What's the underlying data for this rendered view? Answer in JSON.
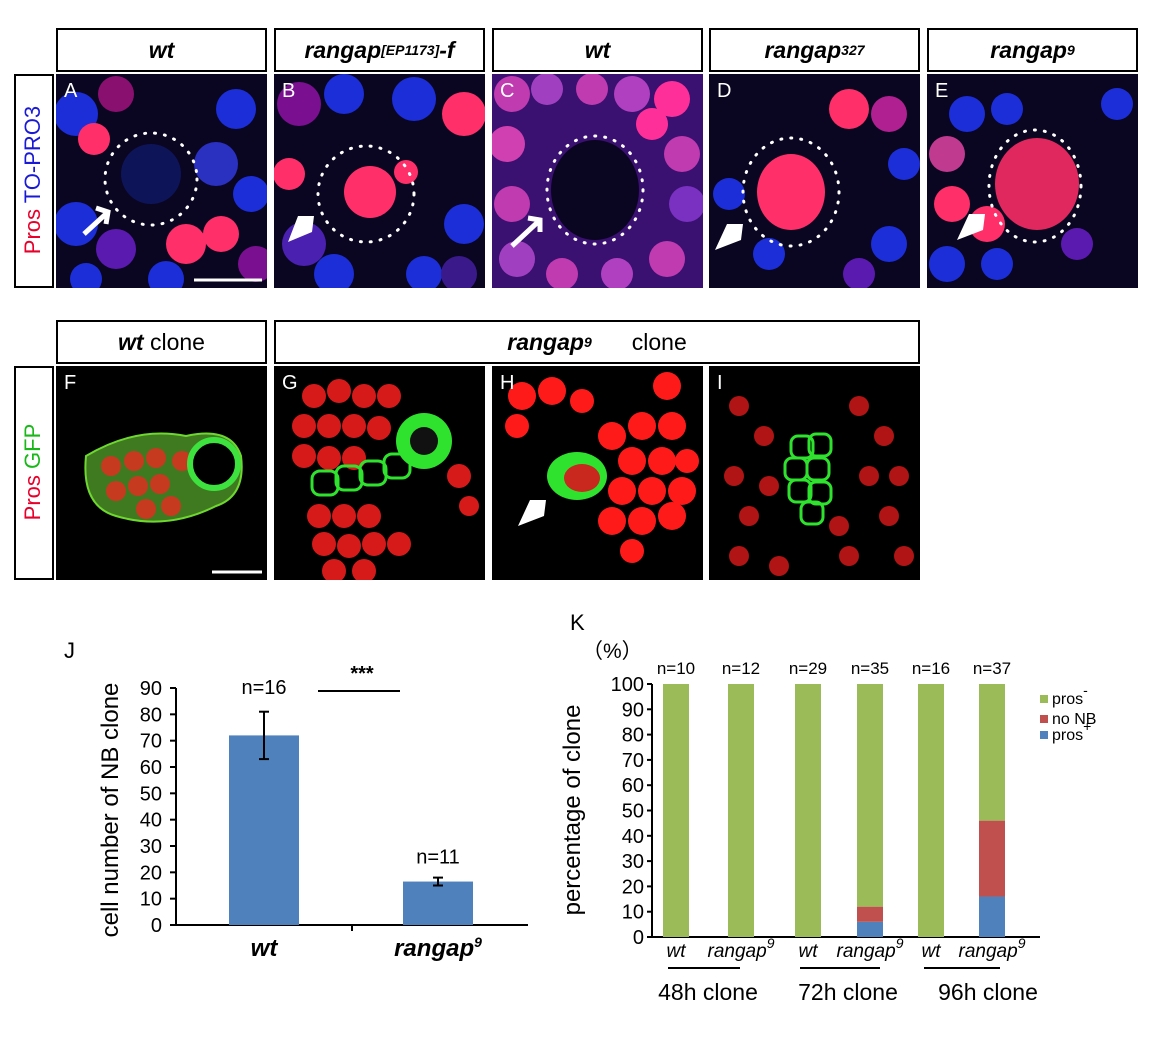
{
  "row1": {
    "headers": [
      {
        "text": "wt",
        "sup": ""
      },
      {
        "text": "rangap",
        "sup": "[EP1173]",
        "suffix": "-f"
      },
      {
        "text": "wt",
        "sup": ""
      },
      {
        "text": "rangap",
        "sup": "327"
      },
      {
        "text": "rangap",
        "sup": "9"
      }
    ],
    "panel_labels": [
      "A",
      "B",
      "C",
      "D",
      "E"
    ],
    "side_label": {
      "red": "Pros",
      "blue": "TO-PRO3"
    },
    "colors": {
      "red": "#ff2f6a",
      "blue": "#1c2ed8"
    }
  },
  "row2": {
    "headers": [
      {
        "main": "wt",
        "rest": " clone"
      },
      {
        "main": "rangap",
        "sup": "9",
        "rest": "clone"
      }
    ],
    "panel_labels": [
      "F",
      "G",
      "H",
      "I"
    ],
    "side_label": {
      "red": "Pros",
      "green": "GFP"
    },
    "colors": {
      "red": "#ff1a1a",
      "green": "#2ee22e"
    }
  },
  "chart_J": {
    "panel_label": "J",
    "type": "bar",
    "ylabel": "cell number of NB clone",
    "categories": [
      "wt",
      "rangap"
    ],
    "category_sup": [
      "",
      "9"
    ],
    "values": [
      72,
      16.5
    ],
    "errors": [
      9,
      1.5
    ],
    "n_labels": [
      "n=16",
      "n=11"
    ],
    "significance": "***",
    "ylim": [
      0,
      90
    ],
    "yticks": [
      "0",
      "10",
      "20",
      "30",
      "40",
      "50",
      "60",
      "70",
      "80",
      "90"
    ],
    "bar_color": "#4f81bd"
  },
  "chart_K": {
    "panel_label": "K",
    "type": "bar",
    "stacked": true,
    "unit": "（%）",
    "ylabel": "percentage of clone",
    "ylim": [
      0,
      100
    ],
    "yticks": [
      "0",
      "10",
      "20",
      "30",
      "40",
      "50",
      "60",
      "70",
      "80",
      "90",
      "100"
    ],
    "bars": [
      {
        "label": "wt",
        "sup": "",
        "n": "n=10",
        "pros_plus": 0,
        "no_nb": 0,
        "pros_minus": 100
      },
      {
        "label": "rangap",
        "sup": "9",
        "n": "n=12",
        "pros_plus": 0,
        "no_nb": 0,
        "pros_minus": 100
      },
      {
        "label": "wt",
        "sup": "",
        "n": "n=29",
        "pros_plus": 0,
        "no_nb": 0,
        "pros_minus": 100
      },
      {
        "label": "rangap",
        "sup": "9",
        "n": "n=35",
        "pros_plus": 6,
        "no_nb": 6,
        "pros_minus": 88
      },
      {
        "label": "wt",
        "sup": "",
        "n": "n=16",
        "pros_plus": 0,
        "no_nb": 0,
        "pros_minus": 100
      },
      {
        "label": "rangap",
        "sup": "9",
        "n": "n=37",
        "pros_plus": 16,
        "no_nb": 30,
        "pros_minus": 54
      }
    ],
    "groups": [
      "48h clone",
      "72h clone",
      "96h clone"
    ],
    "legend": [
      {
        "name": "pros",
        "sup": "-",
        "color": "#9bbb59"
      },
      {
        "name": "no NB",
        "sup": "",
        "color": "#c0504d"
      },
      {
        "name": "pros",
        "sup": "+",
        "color": "#4f81bd"
      }
    ]
  }
}
